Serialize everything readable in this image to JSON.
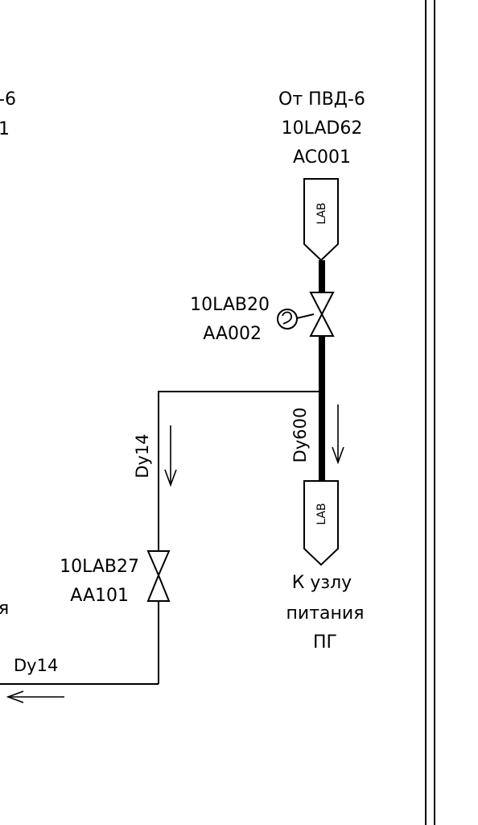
{
  "left_edge_fragments": {
    "top_line1": "-6",
    "top_line2": "1",
    "bottom_fragment": "я"
  },
  "source_top": {
    "line1": "От ПВД-6",
    "line2": "10LAD62",
    "line3": "AC001",
    "tag": "LAB"
  },
  "valve_main": {
    "line1": "10LAB20",
    "line2": "AA002"
  },
  "pipe_main": {
    "diameter": "Dy600"
  },
  "pipe_branch": {
    "diameter": "Dy14"
  },
  "valve_branch": {
    "line1": "10LAB27",
    "line2": "AA101"
  },
  "outlet_bottom": {
    "diameter": "Dy14"
  },
  "destination": {
    "tag": "LAB",
    "line1": "К узлу",
    "line2": "питания",
    "line3": "ПГ"
  }
}
